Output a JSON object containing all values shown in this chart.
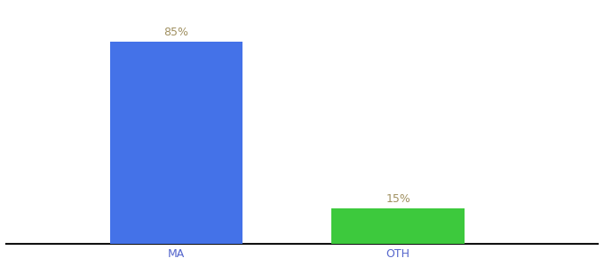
{
  "categories": [
    "MA",
    "OTH"
  ],
  "values": [
    85,
    15
  ],
  "bar_colors": [
    "#4472e8",
    "#3dc93d"
  ],
  "label_values": [
    "85%",
    "15%"
  ],
  "label_color": "#a09060",
  "background_color": "#ffffff",
  "ylim": [
    0,
    100
  ],
  "bar_width": 0.18,
  "xlabel_fontsize": 9,
  "label_fontsize": 9,
  "spine_color": "#111111",
  "tick_label_color": "#5566cc"
}
